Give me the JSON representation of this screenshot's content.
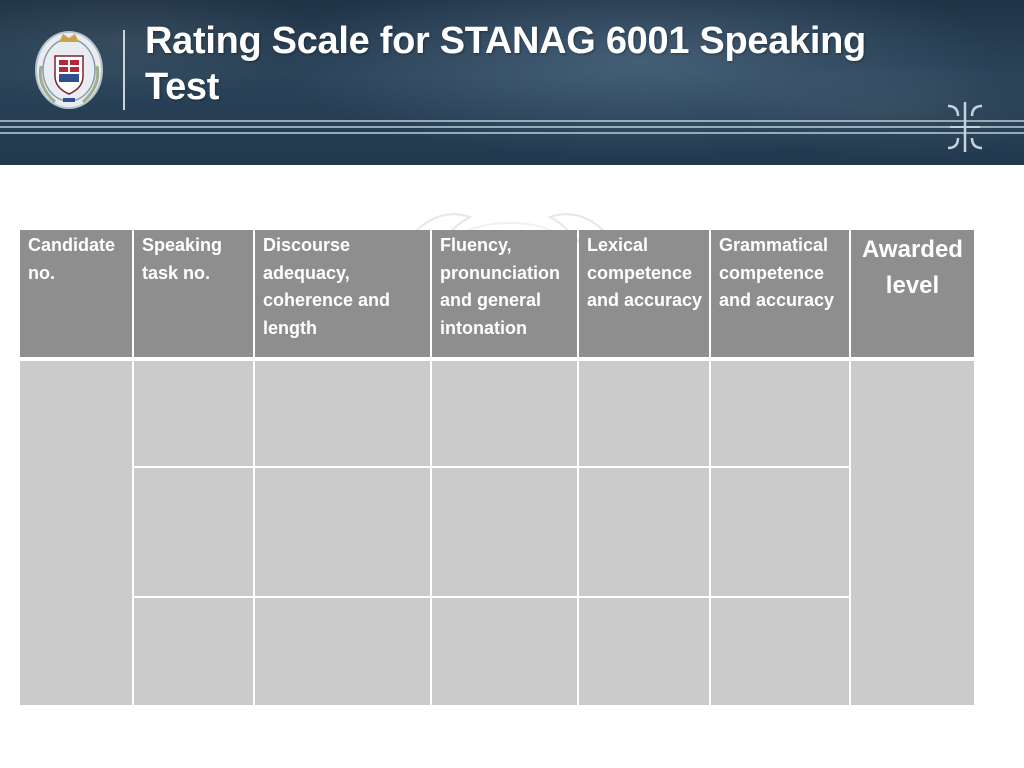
{
  "slide": {
    "title": "Rating Scale for STANAG 6001 Speaking Test",
    "logo_icon": "military-academy-crest",
    "ornament_icon": "double-bracket-ornament",
    "colors": {
      "header_background": "#243c52",
      "table_header": "#8e8e8e",
      "table_body": "#cbcbcb",
      "text_light": "#ffffff"
    }
  },
  "table": {
    "columns": [
      "Candidate no.",
      "Speaking task no.",
      "Discourse adequacy, coherence and length",
      "Fluency, pronunciation and general intonation",
      "Lexical competence and accuracy",
      "Grammatical competence and accuracy",
      "Awarded level"
    ],
    "body_rows": 3,
    "merged_columns": [
      "Candidate no.",
      "Awarded level"
    ]
  }
}
